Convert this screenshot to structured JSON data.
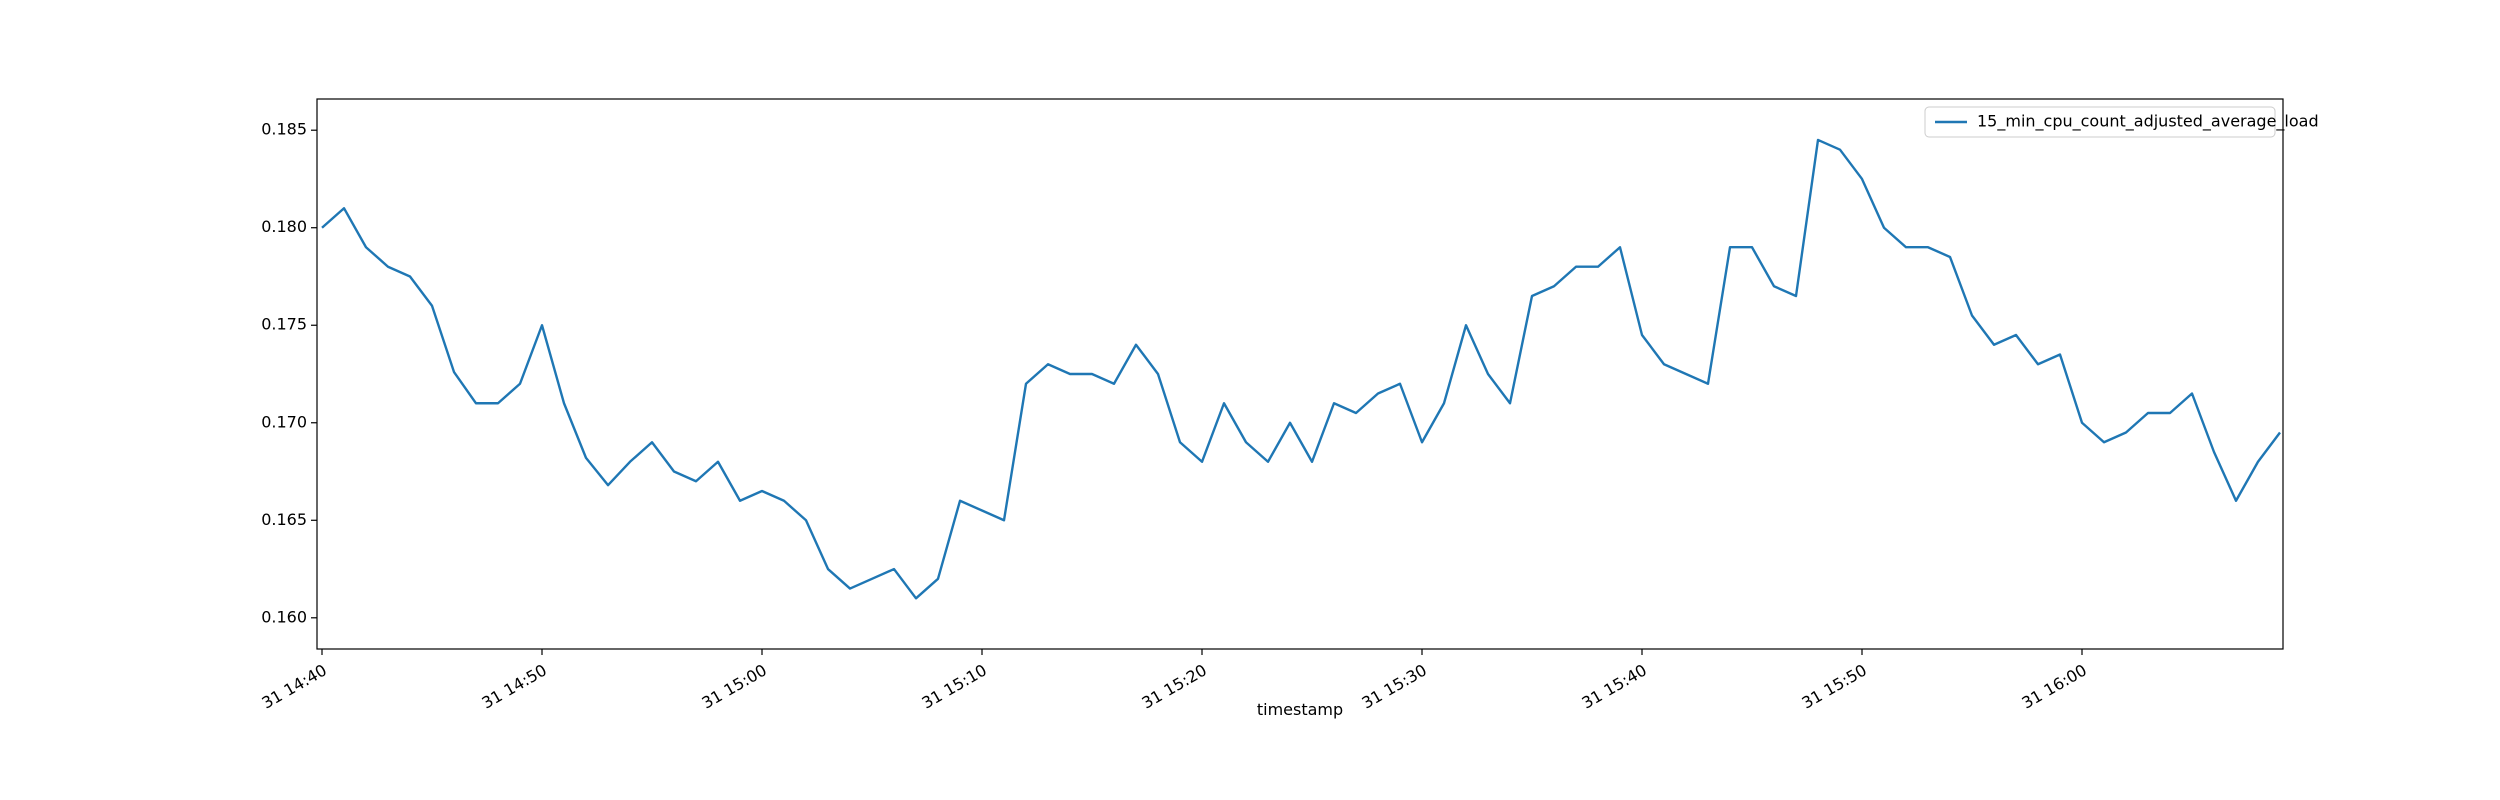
{
  "chart_data": {
    "type": "line",
    "x_label": "timestamp",
    "legend": "upper right",
    "x": [
      "31 14:40",
      "31 14:41",
      "31 14:42",
      "31 14:43",
      "31 14:44",
      "31 14:45",
      "31 14:46",
      "31 14:47",
      "31 14:48",
      "31 14:49",
      "31 14:50",
      "31 14:51",
      "31 14:52",
      "31 14:53",
      "31 14:54",
      "31 14:55",
      "31 14:56",
      "31 14:57",
      "31 14:58",
      "31 14:59",
      "31 15:00",
      "31 15:01",
      "31 15:02",
      "31 15:03",
      "31 15:04",
      "31 15:05",
      "31 15:06",
      "31 15:07",
      "31 15:08",
      "31 15:09",
      "31 15:10",
      "31 15:11",
      "31 15:12",
      "31 15:13",
      "31 15:14",
      "31 15:15",
      "31 15:16",
      "31 15:17",
      "31 15:18",
      "31 15:19",
      "31 15:20",
      "31 15:21",
      "31 15:22",
      "31 15:23",
      "31 15:24",
      "31 15:25",
      "31 15:26",
      "31 15:27",
      "31 15:28",
      "31 15:29",
      "31 15:30",
      "31 15:31",
      "31 15:32",
      "31 15:33",
      "31 15:34",
      "31 15:35",
      "31 15:36",
      "31 15:37",
      "31 15:38",
      "31 15:39",
      "31 15:40",
      "31 15:41",
      "31 15:42",
      "31 15:43",
      "31 15:44",
      "31 15:45",
      "31 15:46",
      "31 15:47",
      "31 15:48",
      "31 15:49",
      "31 15:50",
      "31 15:51",
      "31 15:52",
      "31 15:53",
      "31 15:54",
      "31 15:55",
      "31 15:56",
      "31 15:57",
      "31 15:58",
      "31 15:59",
      "31 16:00",
      "31 16:01",
      "31 16:02",
      "31 16:03",
      "31 16:04",
      "31 16:05",
      "31 16:06",
      "31 16:07",
      "31 16:08",
      "31 16:09"
    ],
    "series": [
      {
        "name": "15_min_cpu_count_adjusted_average_load",
        "color": "#1f77b4",
        "values": [
          0.18,
          0.181,
          0.179,
          0.178,
          0.1775,
          0.176,
          0.1726,
          0.171,
          0.171,
          0.172,
          0.175,
          0.171,
          0.1682,
          0.1668,
          0.168,
          0.169,
          0.1675,
          0.167,
          0.168,
          0.166,
          0.1665,
          0.166,
          0.165,
          0.1625,
          0.1615,
          0.162,
          0.1625,
          0.161,
          0.162,
          0.166,
          0.1655,
          0.165,
          0.172,
          0.173,
          0.1725,
          0.1725,
          0.172,
          0.174,
          0.1725,
          0.169,
          0.168,
          0.171,
          0.169,
          0.168,
          0.17,
          0.168,
          0.171,
          0.1705,
          0.1715,
          0.172,
          0.169,
          0.171,
          0.175,
          0.1725,
          0.171,
          0.1765,
          0.177,
          0.178,
          0.178,
          0.179,
          0.1745,
          0.173,
          0.1725,
          0.172,
          0.179,
          0.179,
          0.177,
          0.1765,
          0.1845,
          0.184,
          0.1825,
          0.18,
          0.179,
          0.179,
          0.1785,
          0.1755,
          0.174,
          0.1745,
          0.173,
          0.1735,
          0.17,
          0.169,
          0.1695,
          0.1705,
          0.1705,
          0.1715,
          0.1685,
          0.166,
          0.168,
          0.1695
        ]
      }
    ],
    "xlim": [
      "31 14:40",
      "31 16:09"
    ],
    "xticks": [
      "31 14:40",
      "31 14:50",
      "31 15:00",
      "31 15:10",
      "31 15:20",
      "31 15:30",
      "31 15:40",
      "31 15:50",
      "31 16:00"
    ],
    "ylim": [
      0.1584,
      0.1866
    ],
    "yticks": [
      {
        "value": 0.16,
        "label": "0.160"
      },
      {
        "value": 0.165,
        "label": "0.165"
      },
      {
        "value": 0.17,
        "label": "0.170"
      },
      {
        "value": 0.175,
        "label": "0.175"
      },
      {
        "value": 0.18,
        "label": "0.180"
      },
      {
        "value": 0.185,
        "label": "0.185"
      }
    ]
  }
}
